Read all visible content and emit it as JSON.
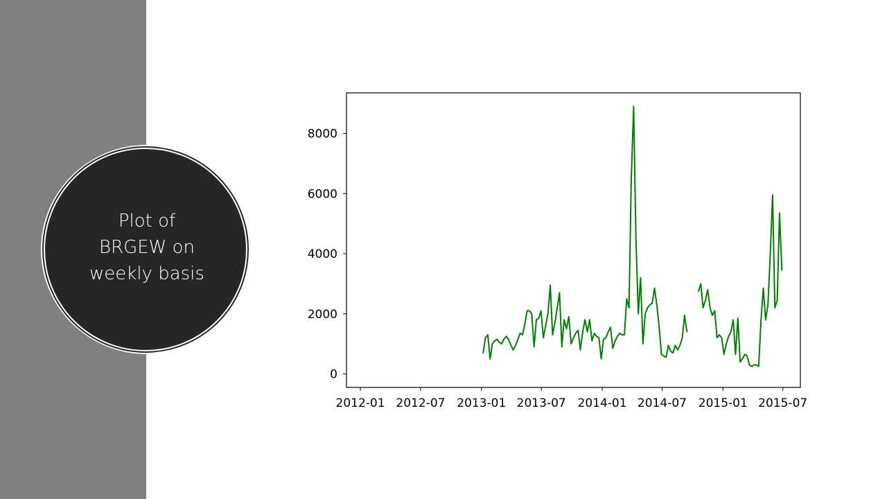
{
  "slide": {
    "title_lines": [
      "Plot of",
      "BRGEW on",
      "weekly basis"
    ]
  },
  "colors": {
    "sidebar": "#808080",
    "circle": "#262626",
    "line": "#008000"
  },
  "chart_data": {
    "type": "line",
    "title": "",
    "xlabel": "",
    "ylabel": "",
    "xlim": [
      "2011-11-20",
      "2015-08-23"
    ],
    "ylim": [
      -450,
      9350
    ],
    "grid": false,
    "legend": "none",
    "x_tick_labels": [
      "2012-01",
      "2012-07",
      "2013-01",
      "2013-07",
      "2014-01",
      "2014-07",
      "2015-01",
      "2015-07"
    ],
    "y_tick_labels": [
      "0",
      "2000",
      "4000",
      "6000",
      "8000"
    ],
    "y_ticks": [
      0,
      2000,
      4000,
      6000,
      8000
    ],
    "series": [
      {
        "color": "#008000",
        "segments": [
          {
            "x": [
              "2013-01-06",
              "2013-01-13",
              "2013-01-20",
              "2013-01-27",
              "2013-02-03",
              "2013-02-10",
              "2013-02-17",
              "2013-02-24",
              "2013-03-03",
              "2013-03-10",
              "2013-03-17",
              "2013-03-24",
              "2013-03-31",
              "2013-04-07",
              "2013-04-14",
              "2013-04-21",
              "2013-04-28",
              "2013-05-05",
              "2013-05-12",
              "2013-05-19",
              "2013-05-26",
              "2013-06-02",
              "2013-06-09",
              "2013-06-16",
              "2013-06-23",
              "2013-06-30",
              "2013-07-07",
              "2013-07-14",
              "2013-07-21",
              "2013-07-28",
              "2013-08-04",
              "2013-08-11",
              "2013-08-18",
              "2013-08-25",
              "2013-09-01",
              "2013-09-08",
              "2013-09-15",
              "2013-09-22",
              "2013-09-29",
              "2013-10-06",
              "2013-10-13",
              "2013-10-20",
              "2013-10-27",
              "2013-11-03",
              "2013-11-10",
              "2013-11-17",
              "2013-11-24",
              "2013-12-01",
              "2013-12-08",
              "2013-12-15",
              "2013-12-22",
              "2013-12-29",
              "2014-01-05",
              "2014-01-12",
              "2014-01-19",
              "2014-01-26",
              "2014-02-02",
              "2014-02-09",
              "2014-02-16",
              "2014-02-23",
              "2014-03-02",
              "2014-03-09",
              "2014-03-16",
              "2014-03-23",
              "2014-03-30",
              "2014-04-06",
              "2014-04-13",
              "2014-04-20",
              "2014-04-27",
              "2014-05-04",
              "2014-05-11",
              "2014-05-18",
              "2014-05-25",
              "2014-06-01",
              "2014-06-08",
              "2014-06-15",
              "2014-06-22",
              "2014-06-29",
              "2014-07-06",
              "2014-07-13",
              "2014-07-20",
              "2014-07-27",
              "2014-08-03",
              "2014-08-10",
              "2014-08-17",
              "2014-08-24",
              "2014-08-31",
              "2014-09-07",
              "2014-09-14"
            ],
            "y": [
              700,
              1200,
              1300,
              500,
              1000,
              1100,
              1150,
              1050,
              1000,
              1150,
              1250,
              1150,
              950,
              800,
              950,
              1150,
              1350,
              1300,
              1650,
              2100,
              2100,
              2000,
              900,
              1800,
              1850,
              2100,
              1200,
              1600,
              2000,
              2950,
              1300,
              1700,
              2200,
              2700,
              900,
              1800,
              1500,
              1900,
              1000,
              1200,
              1350,
              1450,
              800,
              1400,
              1800,
              1400,
              1800,
              1100,
              1350,
              1250,
              1200,
              500,
              1150,
              1200,
              1400,
              1550,
              850,
              1100,
              1250,
              1350,
              1300,
              1300,
              2500,
              2200,
              6500,
              8900,
              4500,
              2000,
              3200,
              1000,
              2000,
              2200,
              2300,
              2350,
              2850,
              2300,
              1600,
              650,
              600,
              550,
              950,
              750,
              700,
              950,
              800,
              950,
              1200,
              1950,
              1400
            ]
          },
          {
            "x": [
              "2014-10-19",
              "2014-10-26",
              "2014-11-02",
              "2014-11-09",
              "2014-11-16",
              "2014-11-23",
              "2014-11-30",
              "2014-12-07",
              "2014-12-14",
              "2014-12-21",
              "2014-12-28",
              "2015-01-04",
              "2015-01-11",
              "2015-01-18",
              "2015-01-25",
              "2015-02-01",
              "2015-02-08",
              "2015-02-15",
              "2015-02-22",
              "2015-03-01",
              "2015-03-08",
              "2015-03-15",
              "2015-03-22",
              "2015-03-29",
              "2015-04-05",
              "2015-04-12",
              "2015-04-19",
              "2015-04-26",
              "2015-05-03",
              "2015-05-10",
              "2015-05-17",
              "2015-05-24",
              "2015-05-31",
              "2015-06-07",
              "2015-06-14",
              "2015-06-21",
              "2015-06-28"
            ],
            "y": [
              2750,
              3000,
              2200,
              2450,
              2800,
              2200,
              1950,
              2100,
              1200,
              1300,
              1200,
              650,
              1000,
              1250,
              1400,
              1800,
              650,
              1850,
              400,
              500,
              650,
              600,
              300,
              250,
              300,
              300,
              250,
              1800,
              2850,
              1800,
              2300,
              4000,
              5950,
              2200,
              2450,
              5350,
              3450
            ]
          }
        ]
      }
    ]
  }
}
